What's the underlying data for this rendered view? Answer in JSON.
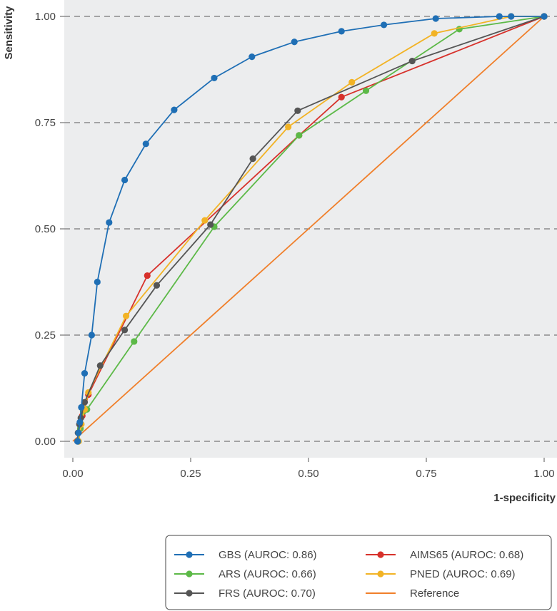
{
  "chart_data": {
    "type": "line",
    "xlabel": "1-specificity",
    "ylabel": "Sensitivity",
    "xlim": [
      0,
      1
    ],
    "ylim": [
      0,
      1
    ],
    "xticks": [
      0,
      0.25,
      0.5,
      0.75,
      1
    ],
    "yticks": [
      0,
      0.25,
      0.5,
      0.75,
      1
    ],
    "x_tick_labels": [
      "0.00",
      "0.25",
      "0.50",
      "0.75",
      "1.00"
    ],
    "y_tick_labels": [
      "0.00",
      "0.25",
      "0.50",
      "0.75",
      "1.00"
    ],
    "grid": "horizontal dashed",
    "legend_position": "bottom-right",
    "series": [
      {
        "name": "GBS (AUROC: 0.86)",
        "color": "#1f6fb5",
        "markers": true,
        "points": [
          [
            0.01,
            0.0
          ],
          [
            0.012,
            0.02
          ],
          [
            0.015,
            0.045
          ],
          [
            0.018,
            0.08
          ],
          [
            0.025,
            0.16
          ],
          [
            0.04,
            0.25
          ],
          [
            0.052,
            0.375
          ],
          [
            0.077,
            0.515
          ],
          [
            0.11,
            0.615
          ],
          [
            0.155,
            0.7
          ],
          [
            0.215,
            0.78
          ],
          [
            0.3,
            0.855
          ],
          [
            0.38,
            0.905
          ],
          [
            0.47,
            0.94
          ],
          [
            0.57,
            0.965
          ],
          [
            0.66,
            0.98
          ],
          [
            0.77,
            0.995
          ],
          [
            0.905,
            1.0
          ],
          [
            0.93,
            1.0
          ],
          [
            1.0,
            1.0
          ]
        ]
      },
      {
        "name": "AIMS65 (AUROC: 0.68)",
        "color": "#d7312b",
        "markers": true,
        "points": [
          [
            0.012,
            0.0
          ],
          [
            0.016,
            0.03
          ],
          [
            0.02,
            0.06
          ],
          [
            0.025,
            0.075
          ],
          [
            0.033,
            0.11
          ],
          [
            0.158,
            0.39
          ],
          [
            0.48,
            0.72
          ],
          [
            0.57,
            0.81
          ],
          [
            1.0,
            1.0
          ]
        ]
      },
      {
        "name": "ARS (AUROC: 0.66)",
        "color": "#5cb947",
        "markers": true,
        "points": [
          [
            0.012,
            0.0
          ],
          [
            0.016,
            0.03
          ],
          [
            0.022,
            0.07
          ],
          [
            0.03,
            0.075
          ],
          [
            0.13,
            0.235
          ],
          [
            0.3,
            0.505
          ],
          [
            0.48,
            0.72
          ],
          [
            0.622,
            0.825
          ],
          [
            0.82,
            0.97
          ],
          [
            1.0,
            1.0
          ]
        ]
      },
      {
        "name": "PNED (AUROC: 0.69)",
        "color": "#f2b325",
        "markers": true,
        "points": [
          [
            0.012,
            0.0
          ],
          [
            0.018,
            0.04
          ],
          [
            0.025,
            0.075
          ],
          [
            0.033,
            0.115
          ],
          [
            0.113,
            0.295
          ],
          [
            0.28,
            0.52
          ],
          [
            0.457,
            0.74
          ],
          [
            0.592,
            0.845
          ],
          [
            0.767,
            0.96
          ],
          [
            0.93,
            1.0
          ],
          [
            1.0,
            1.0
          ]
        ]
      },
      {
        "name": "FRS (AUROC: 0.70)",
        "color": "#555555",
        "markers": true,
        "points": [
          [
            0.01,
            0.0
          ],
          [
            0.011,
            0.02
          ],
          [
            0.014,
            0.04
          ],
          [
            0.017,
            0.055
          ],
          [
            0.025,
            0.092
          ],
          [
            0.058,
            0.178
          ],
          [
            0.11,
            0.262
          ],
          [
            0.178,
            0.367
          ],
          [
            0.292,
            0.51
          ],
          [
            0.382,
            0.665
          ],
          [
            0.477,
            0.778
          ],
          [
            0.72,
            0.895
          ],
          [
            1.0,
            1.0
          ]
        ]
      },
      {
        "name": "Reference",
        "color": "#f07f2a",
        "markers": false,
        "points": [
          [
            0.0,
            0.0
          ],
          [
            1.0,
            1.0
          ]
        ]
      }
    ],
    "legend_order": [
      0,
      1,
      2,
      3,
      4,
      5
    ]
  }
}
